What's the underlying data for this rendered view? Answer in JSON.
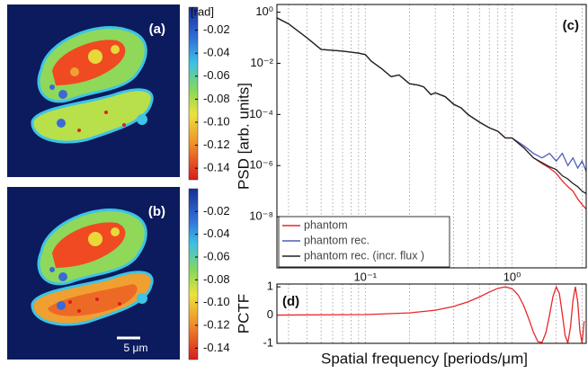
{
  "chart_data": [
    {
      "type": "image",
      "panel_label": "(a)",
      "colorbar_label": "[rad]",
      "clim": [
        -0.15,
        0
      ],
      "cticks": [
        -0.02,
        -0.04,
        -0.06,
        -0.08,
        {
          "value": -0.1,
          "label": "-0.10"
        },
        -0.12,
        -0.14
      ]
    },
    {
      "type": "image",
      "panel_label": "(b)",
      "scale_bar_label": "5 μm",
      "clim": [
        -0.15,
        0
      ],
      "cticks": [
        -0.02,
        -0.04,
        -0.06,
        -0.08,
        {
          "value": -0.1,
          "label": "-0.10"
        },
        -0.12,
        -0.14
      ]
    },
    {
      "type": "line",
      "panel_label": "(c)",
      "ylabel": "PSD [arb. units]",
      "xscale": "log",
      "yscale": "log",
      "xlim": [
        0.025,
        3.2
      ],
      "ylim": [
        1e-10,
        2
      ],
      "xticks": [
        {
          "value": 0.1,
          "label": "10⁻¹"
        },
        {
          "value": 1,
          "label": "10⁰"
        }
      ],
      "xminorticks": [
        0.03,
        0.04,
        0.05,
        0.06,
        0.07,
        0.08,
        0.09,
        0.2,
        0.3,
        0.4,
        0.5,
        0.6,
        0.7,
        0.8,
        0.9,
        2,
        3
      ],
      "yticks": [
        {
          "value": 1,
          "label": "10⁰"
        },
        {
          "value": 0.01,
          "label": "10⁻²"
        },
        {
          "value": 0.0001,
          "label": "10⁻⁴"
        },
        {
          "value": 1e-06,
          "label": "10⁻⁶"
        },
        {
          "value": 1e-08,
          "label": "10⁻⁸"
        }
      ],
      "grid": "x",
      "legend": "lower left",
      "x": [
        0.025,
        0.03,
        0.04,
        0.05,
        0.07,
        0.09,
        0.1,
        0.11,
        0.13,
        0.15,
        0.17,
        0.2,
        0.23,
        0.25,
        0.28,
        0.3,
        0.35,
        0.4,
        0.45,
        0.5,
        0.6,
        0.7,
        0.8,
        0.9,
        1,
        1.2,
        1.4,
        1.6,
        1.8,
        2,
        2.2,
        2.4,
        2.6,
        2.8,
        3,
        3.2
      ],
      "series": [
        {
          "name": "phantom",
          "color": "#e8262a",
          "values": [
            0.6,
            0.35,
            0.1,
            0.035,
            0.03,
            0.025,
            0.022,
            0.012,
            0.006,
            0.003,
            0.0035,
            0.0016,
            0.0014,
            0.0012,
            0.0006,
            0.0007,
            0.0005,
            0.00025,
            0.00018,
            0.0001,
            5e-05,
            3e-05,
            2.2e-05,
            1.2e-05,
            1.2e-05,
            5e-06,
            2e-06,
            1.2e-06,
            8e-07,
            5e-07,
            2.5e-07,
            1.5e-07,
            1e-07,
            5e-08,
            3e-08,
            2e-08
          ]
        },
        {
          "name": "phantom rec.",
          "color": "#4a5fb8",
          "values": [
            0.6,
            0.35,
            0.1,
            0.035,
            0.03,
            0.025,
            0.022,
            0.012,
            0.006,
            0.003,
            0.0035,
            0.0016,
            0.0014,
            0.0012,
            0.0006,
            0.0007,
            0.0005,
            0.00025,
            0.00018,
            0.0001,
            5e-05,
            3e-05,
            2.2e-05,
            1.2e-05,
            1.2e-05,
            6e-06,
            3e-06,
            2e-06,
            3e-06,
            1.5e-06,
            3e-06,
            1e-06,
            2e-06,
            8e-07,
            1.5e-06,
            6e-07
          ]
        },
        {
          "name": "phantom rec. (incr. flux )",
          "color": "#222222",
          "values": [
            0.6,
            0.35,
            0.1,
            0.035,
            0.03,
            0.025,
            0.022,
            0.012,
            0.006,
            0.003,
            0.0035,
            0.0016,
            0.0014,
            0.0012,
            0.0006,
            0.0007,
            0.0005,
            0.00025,
            0.00018,
            0.0001,
            5e-05,
            3e-05,
            2.2e-05,
            1.2e-05,
            1.2e-05,
            5e-06,
            2e-06,
            1.3e-06,
            9e-07,
            7e-07,
            4e-07,
            3e-07,
            2e-07,
            1.5e-07,
            1e-07,
            8e-08
          ]
        }
      ]
    },
    {
      "type": "line",
      "panel_label": "(d)",
      "ylabel": "PCTF",
      "xlabel": "Spatial frequency [periods/μm]",
      "xscale": "log",
      "xlim": [
        0.025,
        3.2
      ],
      "ylim": [
        -1,
        1.1
      ],
      "yticks": [
        -1,
        0,
        1
      ],
      "grid": "x",
      "x": [
        0.025,
        0.1,
        0.2,
        0.3,
        0.4,
        0.5,
        0.6,
        0.7,
        0.8,
        0.9,
        1,
        1.1,
        1.2,
        1.3,
        1.4,
        1.5,
        1.6,
        1.7,
        1.8,
        1.9,
        2,
        2.1,
        2.2,
        2.3,
        2.4,
        2.5,
        2.6,
        2.7,
        2.8,
        2.9,
        3,
        3.1
      ],
      "series": [
        {
          "color": "#e8262a",
          "values": [
            0,
            0.019,
            0.078,
            0.173,
            0.306,
            0.468,
            0.642,
            0.815,
            0.946,
            1,
            0.934,
            0.714,
            0.341,
            -0.135,
            -0.612,
            -0.941,
            -0.969,
            -0.627,
            0,
            0.657,
            0.995,
            0.767,
            0.039,
            -0.73,
            -0.985,
            -0.43,
            0.52,
            1,
            0.48,
            -0.58,
            -0.99,
            -0.21
          ]
        }
      ]
    }
  ]
}
